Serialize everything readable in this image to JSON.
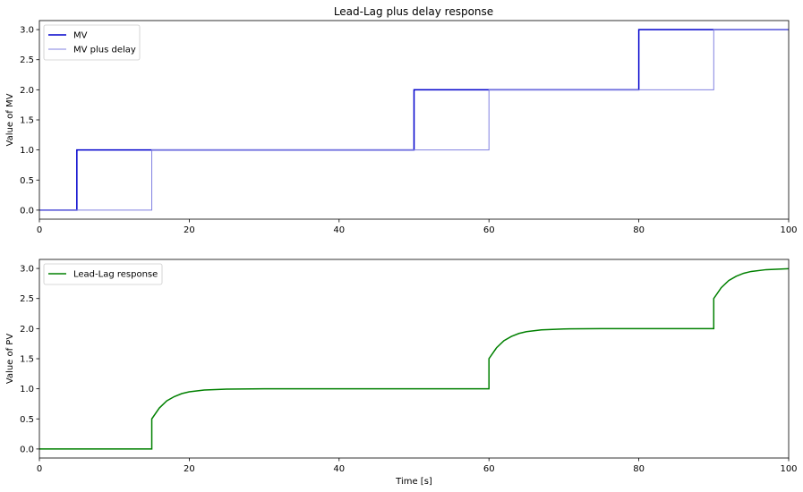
{
  "figure": {
    "title": "Lead-Lag plus delay response"
  },
  "chart_data": [
    {
      "type": "line",
      "title": "Lead-Lag plus delay response",
      "xlabel": "",
      "ylabel": "Value of MV",
      "xlim": [
        0,
        100
      ],
      "ylim": [
        -0.15,
        3.15
      ],
      "xticks": [
        0,
        20,
        40,
        60,
        80,
        100
      ],
      "xtick_labels": [
        "0",
        "20",
        "40",
        "60",
        "80",
        "100"
      ],
      "yticks": [
        0.0,
        0.5,
        1.0,
        1.5,
        2.0,
        2.5,
        3.0
      ],
      "ytick_labels": [
        "0.0",
        "0.5",
        "1.0",
        "1.5",
        "2.0",
        "2.5",
        "3.0"
      ],
      "grid": false,
      "legend_position": "upper-left",
      "series": [
        {
          "name": "MV",
          "color": "#0000cc",
          "step_x": [
            0,
            5,
            50,
            80,
            100
          ],
          "step_y": [
            0,
            1,
            2,
            3,
            3
          ]
        },
        {
          "name": "MV plus delay",
          "color": "#8080e0",
          "step_x": [
            0,
            15,
            60,
            90,
            100
          ],
          "step_y": [
            0,
            1,
            2,
            3,
            3
          ]
        }
      ]
    },
    {
      "type": "line",
      "title": "",
      "xlabel": "Time [s]",
      "ylabel": "Value of PV",
      "xlim": [
        0,
        100
      ],
      "ylim": [
        -0.15,
        3.15
      ],
      "xticks": [
        0,
        20,
        40,
        60,
        80,
        100
      ],
      "xtick_labels": [
        "0",
        "20",
        "40",
        "60",
        "80",
        "100"
      ],
      "yticks": [
        0.0,
        0.5,
        1.0,
        1.5,
        2.0,
        2.5,
        3.0
      ],
      "ytick_labels": [
        "0.0",
        "0.5",
        "1.0",
        "1.5",
        "2.0",
        "2.5",
        "3.0"
      ],
      "grid": false,
      "legend_position": "upper-left",
      "series": [
        {
          "name": "Lead-Lag response",
          "color": "#008000",
          "x": [
            0,
            15,
            15,
            16,
            17,
            18,
            19,
            20,
            22,
            25,
            30,
            60,
            60,
            61,
            62,
            63,
            64,
            65,
            67,
            70,
            75,
            90,
            90,
            91,
            92,
            93,
            94,
            95,
            97,
            100
          ],
          "y": [
            0,
            0,
            0.5,
            0.68,
            0.8,
            0.87,
            0.92,
            0.95,
            0.98,
            0.995,
            1.0,
            1.0,
            1.5,
            1.68,
            1.8,
            1.87,
            1.92,
            1.95,
            1.98,
            1.995,
            2.0,
            2.0,
            2.5,
            2.68,
            2.8,
            2.87,
            2.92,
            2.95,
            2.98,
            2.995
          ]
        }
      ]
    }
  ]
}
